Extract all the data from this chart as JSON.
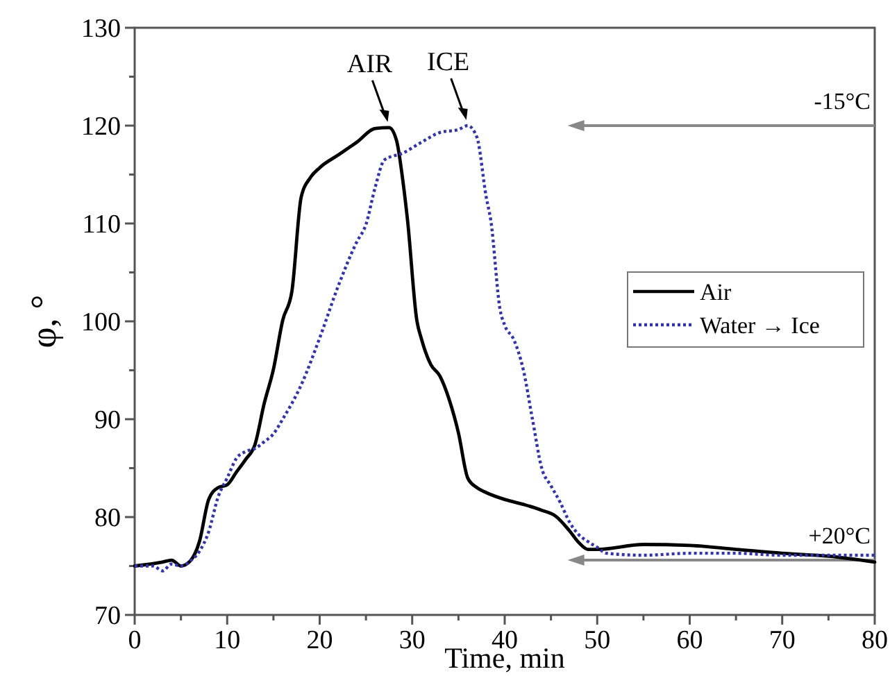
{
  "chart_data": {
    "type": "line",
    "xlabel": "Time, min",
    "ylabel": "φ, °",
    "xlim": [
      0,
      80
    ],
    "ylim": [
      70,
      130
    ],
    "xticks": [
      0,
      {
        "value": 5,
        "label": null
      },
      10,
      {
        "value": 15,
        "label": null
      },
      20,
      {
        "value": 25,
        "label": null
      },
      30,
      {
        "value": 35,
        "label": null
      },
      40,
      {
        "value": 45,
        "label": null
      },
      50,
      {
        "value": 55,
        "label": null
      },
      60,
      {
        "value": 65,
        "label": null
      },
      70,
      {
        "value": 75,
        "label": null
      },
      80
    ],
    "yticks": [
      70,
      {
        "value": 75,
        "label": null
      },
      80,
      {
        "value": 85,
        "label": null
      },
      90,
      {
        "value": 95,
        "label": null
      },
      100,
      {
        "value": 105,
        "label": null
      },
      110,
      {
        "value": 115,
        "label": null
      },
      120,
      {
        "value": 125,
        "label": null
      },
      130
    ],
    "grid": false,
    "legend": "right",
    "marker": "none",
    "series": [
      {
        "name": "Air",
        "color": "#000000",
        "line_style": "solid",
        "x": [
          0,
          3,
          4,
          5,
          6,
          7,
          8,
          9,
          10,
          11,
          12,
          13,
          14,
          15,
          16,
          17,
          18,
          19,
          20,
          22,
          24,
          26,
          27.5,
          28.3,
          29,
          29.5,
          30.5,
          31,
          32,
          33,
          34,
          35,
          36,
          37,
          38,
          40,
          42,
          44,
          45.5,
          47,
          48,
          49,
          50,
          55,
          60,
          65,
          70,
          75,
          80
        ],
        "values": [
          75,
          75.4,
          75.6,
          75,
          75.5,
          77.5,
          81.8,
          83,
          83.3,
          84.6,
          85.9,
          87.4,
          91.6,
          95.1,
          100.1,
          103.1,
          112.7,
          114.7,
          115.7,
          117,
          118.3,
          119.7,
          119.8,
          118.5,
          114.3,
          110.3,
          100.1,
          98.2,
          95.6,
          94.4,
          92,
          88.6,
          84,
          83,
          82.5,
          81.8,
          81.3,
          80.7,
          80.1,
          78.6,
          77.4,
          76.7,
          76.7,
          77.2,
          77.1,
          76.7,
          76.3,
          76,
          75.4
        ]
      },
      {
        "name": "Water → Ice",
        "color": "#3333aa",
        "line_style": "dotted",
        "x": [
          0,
          2,
          3,
          4,
          5,
          6,
          7,
          8,
          9,
          10,
          11,
          12,
          13,
          14,
          15,
          16,
          18,
          20,
          22,
          24,
          25,
          26,
          27,
          29,
          31,
          33,
          35,
          36,
          37,
          38,
          38.5,
          39.5,
          40,
          41,
          42,
          43,
          44,
          45,
          46,
          47,
          48,
          49,
          50,
          51,
          55,
          60,
          65,
          70,
          75,
          80
        ],
        "values": [
          75,
          75,
          74.5,
          75.2,
          75,
          75.5,
          76.5,
          78.5,
          82,
          84,
          86,
          86.7,
          87,
          87.7,
          88.5,
          90,
          93.5,
          98.3,
          103.6,
          108.1,
          109.9,
          113.7,
          116.5,
          117.2,
          118.3,
          119.3,
          119.6,
          120,
          118.8,
          112.7,
          110.3,
          101.2,
          99.6,
          98.1,
          95.1,
          90,
          85,
          83.2,
          81.5,
          79.5,
          78.2,
          77.5,
          76.9,
          76.3,
          76.1,
          76.3,
          76.3,
          76.1,
          76.1,
          76.1
        ]
      }
    ],
    "ref_lines": [
      {
        "axis": "y",
        "value": 120,
        "label": "-15°C",
        "color": "#888888"
      },
      {
        "axis": "y",
        "value": 75.6,
        "label": "+20°C",
        "color": "#888888"
      }
    ],
    "annotations": [
      {
        "text": "AIR",
        "x": 27.5,
        "y": 119.8
      },
      {
        "text": "ICE",
        "x": 36,
        "y": 120
      }
    ]
  }
}
